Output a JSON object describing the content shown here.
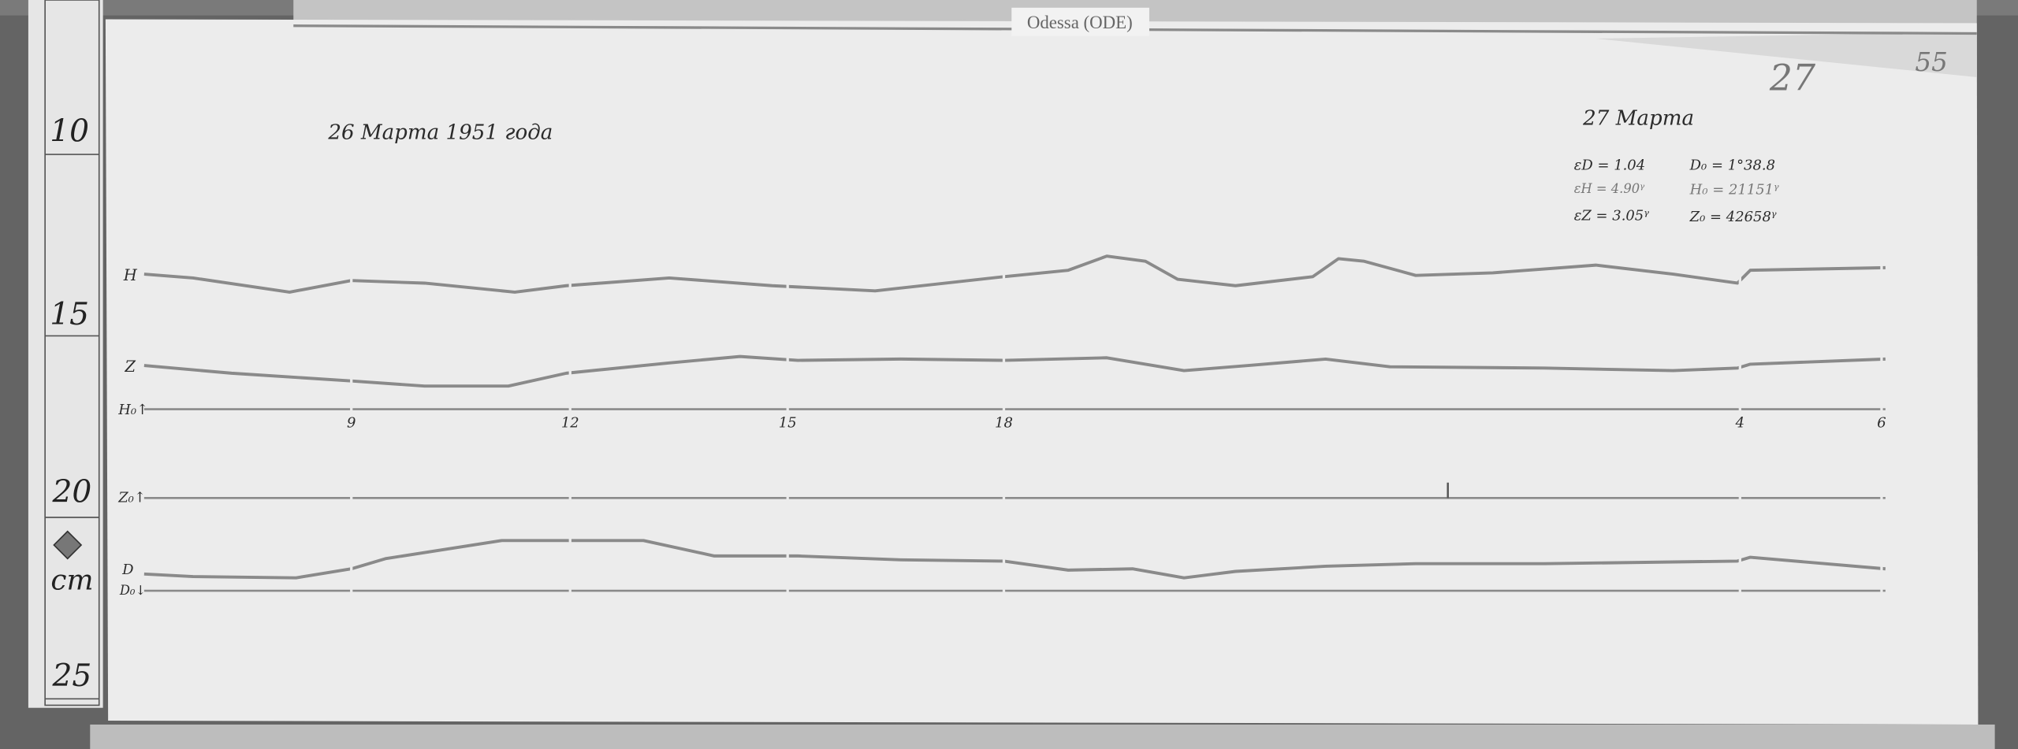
{
  "station_label": "Odessa (ODE)",
  "sheet_number": "27",
  "archive_number": "55",
  "ruler": {
    "marks": [
      "10",
      "15",
      "20",
      "25"
    ],
    "unit": "cm"
  },
  "date_start": "26 Марта 1951 года",
  "date_end": "27 Марта",
  "scale_values": {
    "eD": "εD = 1.04",
    "eH": "εH = 4.90ᵞ",
    "eZ": "εZ = 3.05ᵞ",
    "D0": "D₀ = 1°38.8",
    "H0": "H₀ = 21151ᵞ",
    "Z0": "Z₀ = 42658ᵞ"
  },
  "trace_labels": {
    "H": "H",
    "Z": "Z",
    "H0": "H₀↑",
    "Z0": "Z₀↑",
    "D": "D",
    "D0": "D₀↓"
  },
  "hour_ticks": [
    "9",
    "12",
    "15",
    "18",
    "4",
    "6"
  ],
  "colors": {
    "background": "#5e5e5e",
    "paper": "#ececec",
    "trace": "#8a8a8a"
  }
}
